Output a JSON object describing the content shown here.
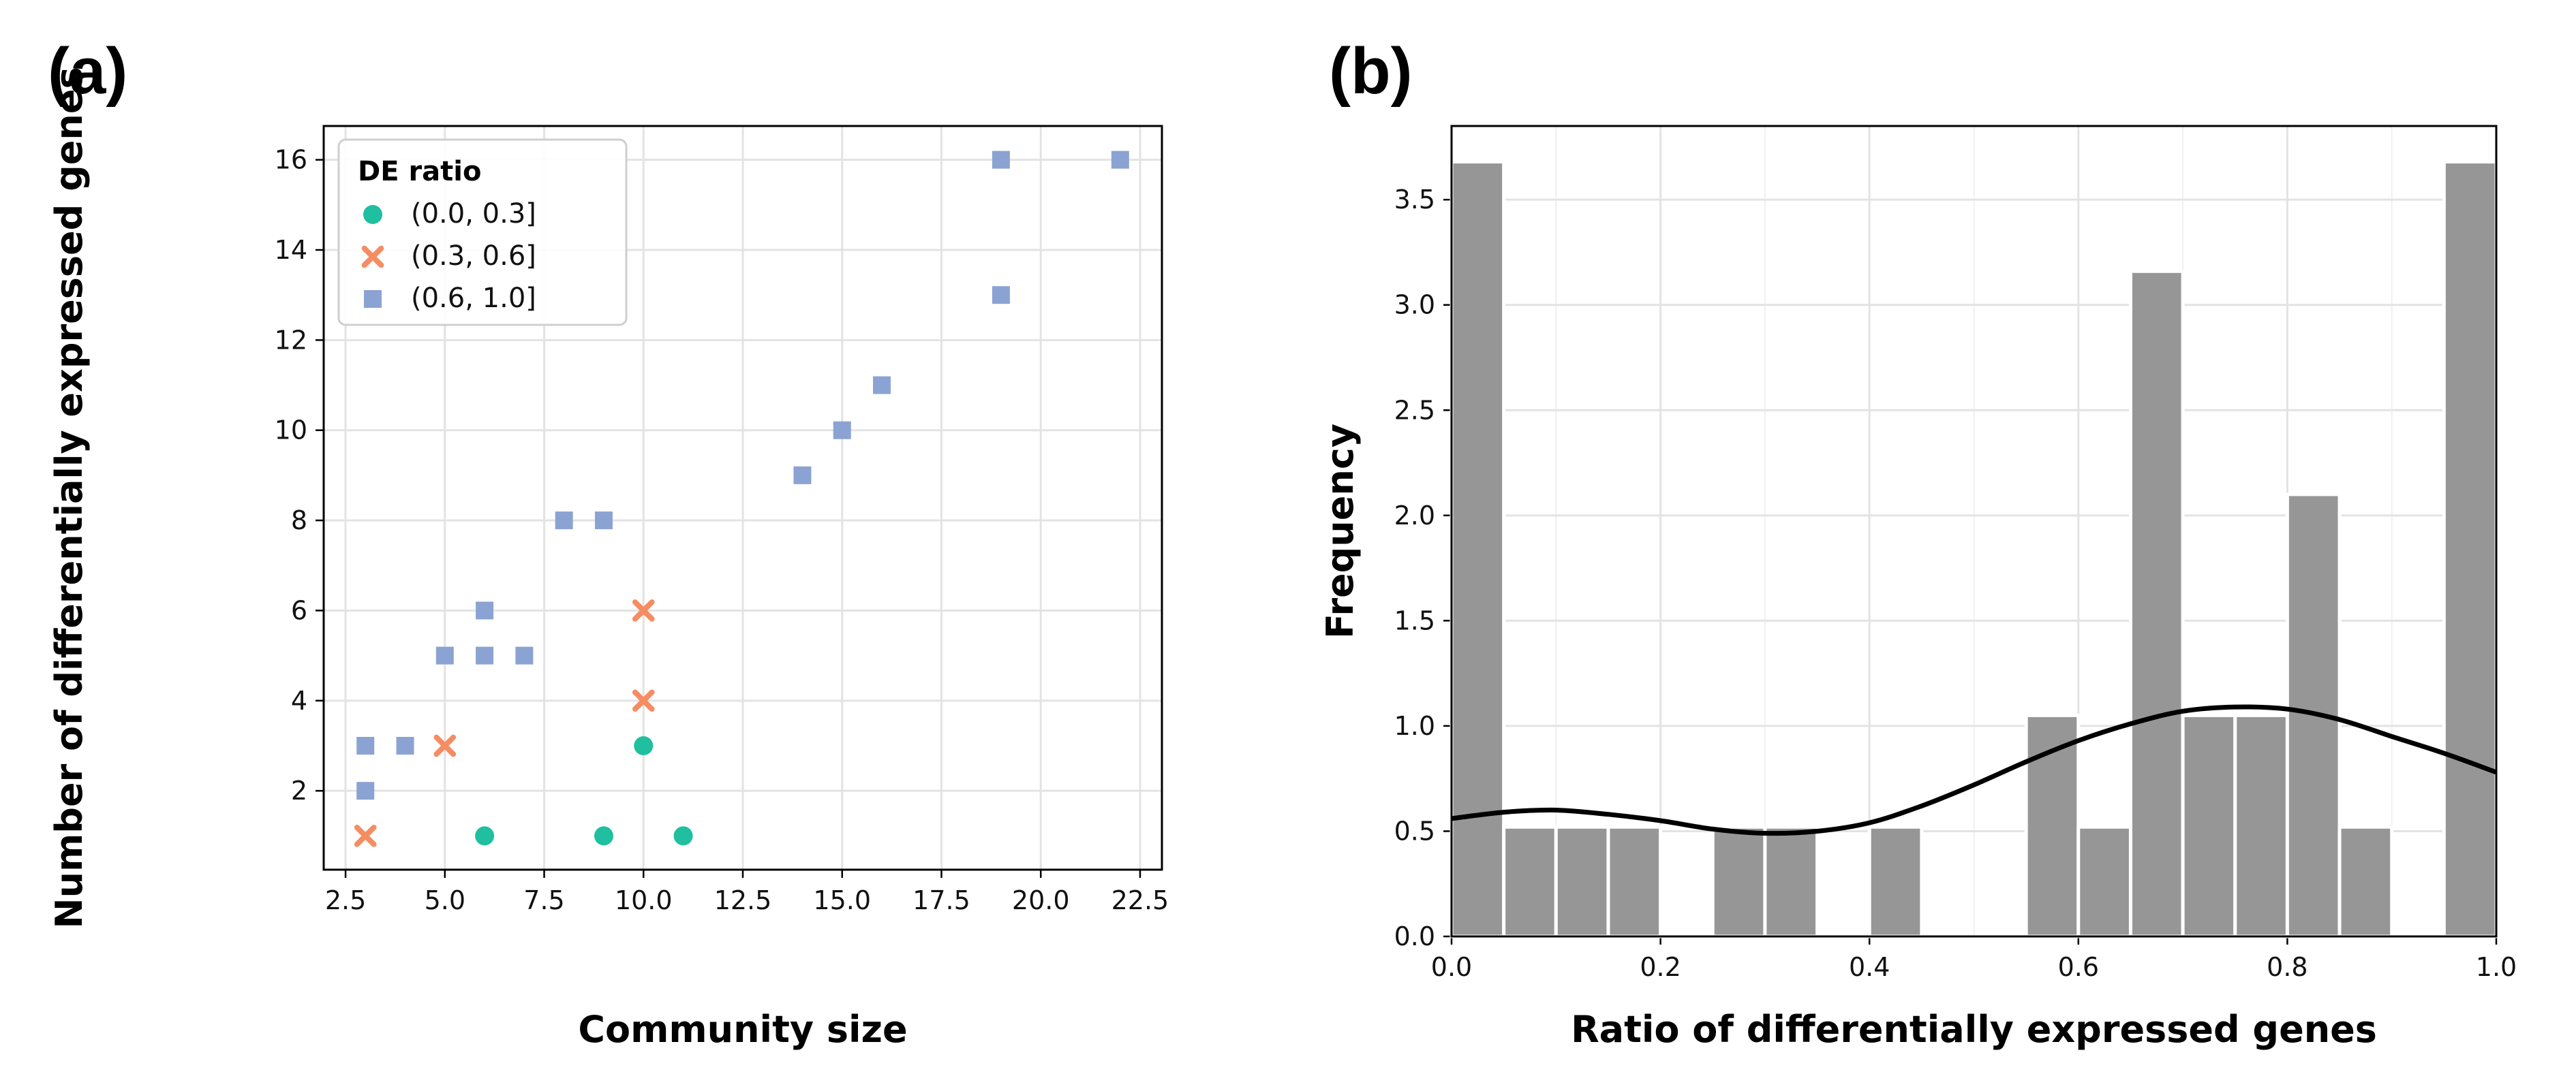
{
  "panels": {
    "a_label": "(a)",
    "b_label": "(b)"
  },
  "colors": {
    "low": "#1fbf9f",
    "mid": "#f58d63",
    "high": "#8ba3d2",
    "bar": "#969696",
    "bar_edge": "#ffffff",
    "grid": "#e3e3e3",
    "axis": "#000000",
    "kde": "#000000"
  },
  "chart_data": [
    {
      "type": "scatter",
      "xlabel": "Community size",
      "ylabel": "Number of differentially expressed genes",
      "xlim": [
        1.95,
        23.05
      ],
      "ylim": [
        0.25,
        16.75
      ],
      "xticks": [
        2.5,
        5.0,
        7.5,
        10.0,
        12.5,
        15.0,
        17.5,
        20.0,
        22.5
      ],
      "xtick_labels": [
        "2.5",
        "5.0",
        "7.5",
        "10.0",
        "12.5",
        "15.0",
        "17.5",
        "20.0",
        "22.5"
      ],
      "yticks": [
        2,
        4,
        6,
        8,
        10,
        12,
        14,
        16
      ],
      "ytick_labels": [
        "2",
        "4",
        "6",
        "8",
        "10",
        "12",
        "14",
        "16"
      ],
      "legend": {
        "title": "DE ratio",
        "position": "top-left"
      },
      "series": [
        {
          "name": "(0.0, 0.3]",
          "marker": "circle",
          "points": [
            [
              6,
              1
            ],
            [
              9,
              1
            ],
            [
              11,
              1
            ],
            [
              10,
              3
            ]
          ]
        },
        {
          "name": "(0.3, 0.6]",
          "marker": "x",
          "points": [
            [
              3,
              1
            ],
            [
              5,
              3
            ],
            [
              10,
              4
            ],
            [
              10,
              6
            ]
          ]
        },
        {
          "name": "(0.6, 1.0]",
          "marker": "square",
          "points": [
            [
              3,
              2
            ],
            [
              3,
              3
            ],
            [
              4,
              3
            ],
            [
              5,
              5
            ],
            [
              6,
              5
            ],
            [
              6,
              6
            ],
            [
              7,
              5
            ],
            [
              8,
              8
            ],
            [
              9,
              8
            ],
            [
              14,
              9
            ],
            [
              15,
              10
            ],
            [
              16,
              11
            ],
            [
              19,
              13
            ],
            [
              19,
              16
            ],
            [
              22,
              16
            ]
          ]
        }
      ]
    },
    {
      "type": "bar",
      "subtype": "histogram",
      "xlabel": "Ratio of differentially expressed genes",
      "ylabel": "Frequency",
      "xlim": [
        0.0,
        1.0
      ],
      "ylim": [
        0.0,
        3.85
      ],
      "bin_width": 0.05,
      "bin_lefts": [
        0.0,
        0.05,
        0.1,
        0.15,
        0.2,
        0.25,
        0.3,
        0.35,
        0.4,
        0.45,
        0.5,
        0.55,
        0.6,
        0.65,
        0.7,
        0.75,
        0.8,
        0.85,
        0.9,
        0.95
      ],
      "values": [
        3.68,
        0.52,
        0.52,
        0.52,
        0.0,
        0.52,
        0.52,
        0.0,
        0.52,
        0.0,
        0.0,
        1.05,
        0.52,
        3.16,
        1.05,
        1.05,
        2.1,
        0.52,
        0.0,
        3.68
      ],
      "xticks": [
        0.0,
        0.2,
        0.4,
        0.6,
        0.8,
        1.0
      ],
      "xtick_labels": [
        "0.0",
        "0.2",
        "0.4",
        "0.6",
        "0.8",
        "1.0"
      ],
      "yticks": [
        0.0,
        0.5,
        1.0,
        1.5,
        2.0,
        2.5,
        3.0,
        3.5
      ],
      "ytick_labels": [
        "0.0",
        "0.5",
        "1.0",
        "1.5",
        "2.0",
        "2.5",
        "3.0",
        "3.5"
      ],
      "kde": {
        "x": [
          0.0,
          0.05,
          0.1,
          0.15,
          0.2,
          0.25,
          0.3,
          0.35,
          0.4,
          0.45,
          0.5,
          0.55,
          0.6,
          0.65,
          0.7,
          0.75,
          0.8,
          0.85,
          0.9,
          0.95,
          1.0
        ],
        "y": [
          0.56,
          0.59,
          0.6,
          0.58,
          0.55,
          0.51,
          0.49,
          0.5,
          0.54,
          0.62,
          0.72,
          0.83,
          0.93,
          1.01,
          1.07,
          1.09,
          1.08,
          1.03,
          0.95,
          0.87,
          0.78
        ]
      }
    }
  ]
}
